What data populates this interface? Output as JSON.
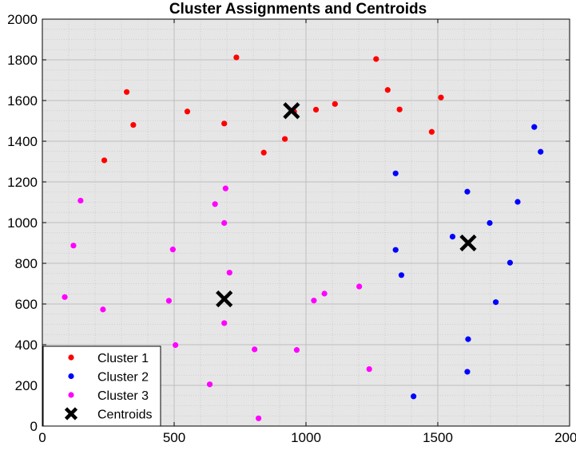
{
  "chart_data": {
    "type": "scatter",
    "title": "Cluster Assignments and Centroids",
    "xlabel": "",
    "ylabel": "",
    "xlim": [
      0,
      2000
    ],
    "ylim": [
      0,
      2000
    ],
    "xticks": [
      0,
      500,
      1000,
      1500,
      2000
    ],
    "yticks": [
      0,
      200,
      400,
      600,
      800,
      1000,
      1200,
      1400,
      1600,
      1800,
      2000
    ],
    "grid": true,
    "minor_grid": true,
    "legend_position": "bottom-left",
    "series": [
      {
        "name": "Cluster 1",
        "color": "#ff0000",
        "marker": "dot",
        "points": [
          [
            736,
            1812
          ],
          [
            1266,
            1804
          ],
          [
            320,
            1642
          ],
          [
            1310,
            1652
          ],
          [
            1512,
            1615
          ],
          [
            550,
            1546
          ],
          [
            1038,
            1555
          ],
          [
            1110,
            1583
          ],
          [
            1355,
            1556
          ],
          [
            955,
            1545
          ],
          [
            345,
            1480
          ],
          [
            690,
            1487
          ],
          [
            1477,
            1446
          ],
          [
            920,
            1411
          ],
          [
            840,
            1344
          ],
          [
            235,
            1306
          ]
        ]
      },
      {
        "name": "Cluster 2",
        "color": "#0000ff",
        "marker": "dot",
        "points": [
          [
            1866,
            1470
          ],
          [
            1890,
            1348
          ],
          [
            1340,
            1242
          ],
          [
            1612,
            1152
          ],
          [
            1803,
            1102
          ],
          [
            1697,
            998
          ],
          [
            1556,
            931
          ],
          [
            1340,
            866
          ],
          [
            1774,
            803
          ],
          [
            1362,
            742
          ],
          [
            1720,
            609
          ],
          [
            1615,
            427
          ],
          [
            1612,
            267
          ],
          [
            1408,
            146
          ]
        ]
      },
      {
        "name": "Cluster 3",
        "color": "#ff00ff",
        "marker": "dot",
        "points": [
          [
            695,
            1168
          ],
          [
            145,
            1108
          ],
          [
            655,
            1091
          ],
          [
            690,
            998
          ],
          [
            118,
            887
          ],
          [
            495,
            868
          ],
          [
            710,
            754
          ],
          [
            1202,
            686
          ],
          [
            1070,
            651
          ],
          [
            85,
            634
          ],
          [
            1030,
            617
          ],
          [
            480,
            616
          ],
          [
            230,
            573
          ],
          [
            690,
            506
          ],
          [
            505,
            398
          ],
          [
            805,
            377
          ],
          [
            965,
            374
          ],
          [
            1240,
            280
          ],
          [
            635,
            205
          ],
          [
            820,
            38
          ]
        ]
      },
      {
        "name": "Centroids",
        "color": "#000000",
        "marker": "x",
        "points": [
          [
            945,
            1550
          ],
          [
            1615,
            900
          ],
          [
            690,
            625
          ]
        ]
      }
    ]
  }
}
